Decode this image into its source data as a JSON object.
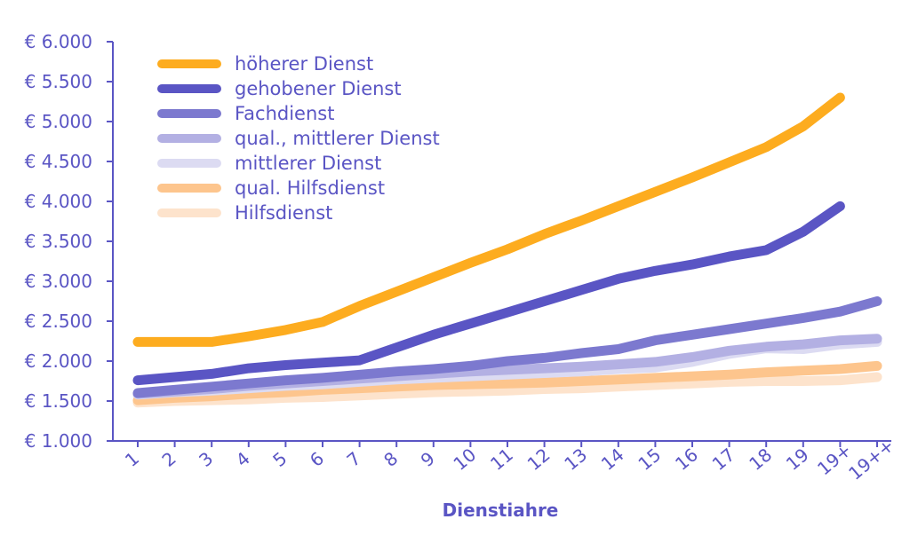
{
  "chart_data": {
    "type": "line",
    "title": "",
    "xlabel": "Dienstiahre",
    "ylabel": "",
    "ylim": [
      1000,
      6000
    ],
    "yticks": [
      1000,
      1500,
      2000,
      2500,
      3000,
      3500,
      4000,
      4500,
      5000,
      5500,
      6000
    ],
    "ytick_labels": [
      "€ 1.000",
      "€ 1.500",
      "€ 2.000",
      "€ 2.500",
      "€ 3.000",
      "€ 3.500",
      "€ 4.000",
      "€ 4.500",
      "€ 5.000",
      "€ 5.500",
      "€ 6.000"
    ],
    "categories": [
      "1",
      "2",
      "3",
      "4",
      "5",
      "6",
      "7",
      "8",
      "9",
      "10",
      "11",
      "12",
      "13",
      "14",
      "15",
      "16",
      "17",
      "18",
      "19",
      "19+",
      "19++"
    ],
    "grid": false,
    "legend_position": "top-left",
    "axis_color": "#5a55c4",
    "series": [
      {
        "name": "höherer Dienst",
        "color": "#fdac1f",
        "values": [
          2240,
          2240,
          2240,
          2310,
          2390,
          2490,
          2690,
          2870,
          3050,
          3230,
          3400,
          3590,
          3760,
          3940,
          4120,
          4300,
          4490,
          4680,
          4940,
          5300,
          null
        ]
      },
      {
        "name": "gehobener Dienst",
        "color": "#5a55c4",
        "values": [
          1760,
          1800,
          1840,
          1910,
          1950,
          1980,
          2010,
          2170,
          2330,
          2470,
          2610,
          2750,
          2890,
          3030,
          3130,
          3210,
          3310,
          3390,
          3620,
          3940,
          null
        ]
      },
      {
        "name": "Fachdienst",
        "color": "#7c79cf",
        "values": [
          1600,
          1640,
          1680,
          1720,
          1760,
          1790,
          1830,
          1870,
          1900,
          1940,
          2000,
          2040,
          2100,
          2150,
          2260,
          2330,
          2400,
          2470,
          2540,
          2620,
          2750
        ]
      },
      {
        "name": "qual., mittlerer Dienst",
        "color": "#b3b0e3",
        "values": [
          1590,
          1620,
          1650,
          1690,
          1720,
          1750,
          1780,
          1810,
          1840,
          1870,
          1890,
          1910,
          1930,
          1960,
          1990,
          2050,
          2130,
          2180,
          2210,
          2260,
          2280
        ]
      },
      {
        "name": "mittlerer Dienst",
        "color": "#dcdbf2",
        "values": [
          1580,
          1610,
          1630,
          1660,
          1690,
          1710,
          1740,
          1770,
          1790,
          1810,
          1830,
          1850,
          1870,
          1900,
          1920,
          1990,
          2090,
          2160,
          2150,
          2210,
          2240
        ]
      },
      {
        "name": "qual. Hilfsdienst",
        "color": "#fdc58d",
        "values": [
          1510,
          1540,
          1560,
          1590,
          1610,
          1640,
          1660,
          1680,
          1700,
          1710,
          1720,
          1730,
          1750,
          1770,
          1790,
          1810,
          1830,
          1860,
          1880,
          1900,
          1940
        ]
      },
      {
        "name": "Hilfsdienst",
        "color": "#fde3cc",
        "values": [
          1480,
          1500,
          1510,
          1520,
          1540,
          1550,
          1570,
          1590,
          1610,
          1620,
          1630,
          1650,
          1660,
          1680,
          1700,
          1720,
          1740,
          1750,
          1750,
          1760,
          1800
        ]
      }
    ]
  }
}
